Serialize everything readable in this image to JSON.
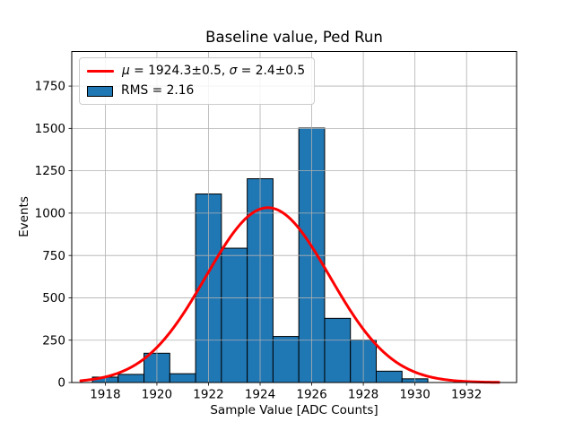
{
  "chart_data": {
    "type": "bar",
    "subtype": "histogram-with-gaussian-fit",
    "title": "Baseline value, Ped Run",
    "xlabel": "Sample Value [ADC Counts]",
    "ylabel": "Events",
    "bin_centers": [
      1918,
      1919,
      1920,
      1921,
      1922,
      1923,
      1924,
      1925,
      1926,
      1927,
      1928,
      1929,
      1930
    ],
    "bin_width": 1,
    "values": [
      32,
      48,
      173,
      52,
      1113,
      793,
      1203,
      272,
      1502,
      379,
      251,
      67,
      22
    ],
    "xticks": [
      1918,
      1920,
      1922,
      1924,
      1926,
      1928,
      1930,
      1932
    ],
    "yticks": [
      0,
      250,
      500,
      750,
      1000,
      1250,
      1500,
      1750
    ],
    "xlim": [
      1916.7,
      1933.94
    ],
    "ylim": [
      0,
      1954
    ],
    "grid": true,
    "grid_color": "#b0b0b0",
    "bar_color": "#1f77b4",
    "bar_edge_color": "#000000",
    "fit_curve": {
      "shape": "gaussian",
      "mu": 1924.3,
      "sigma": 2.4,
      "amplitude": 1032,
      "x_range": [
        1917.05,
        1933.25
      ],
      "color": "#ff0000",
      "linewidth": 3
    },
    "legend": {
      "position": "upper left",
      "entries": [
        {
          "label": "μ = 1924.3±0.5, σ = 2.4±0.5",
          "parts": [
            "μ",
            " = 1924.3±0.5, ",
            "σ",
            " = 2.4±0.5"
          ],
          "marker": "line",
          "color": "#ff0000"
        },
        {
          "label": "RMS = 2.16",
          "parts": [
            "RMS = 2.16"
          ],
          "marker": "patch",
          "color": "#1f77b4"
        }
      ]
    }
  }
}
